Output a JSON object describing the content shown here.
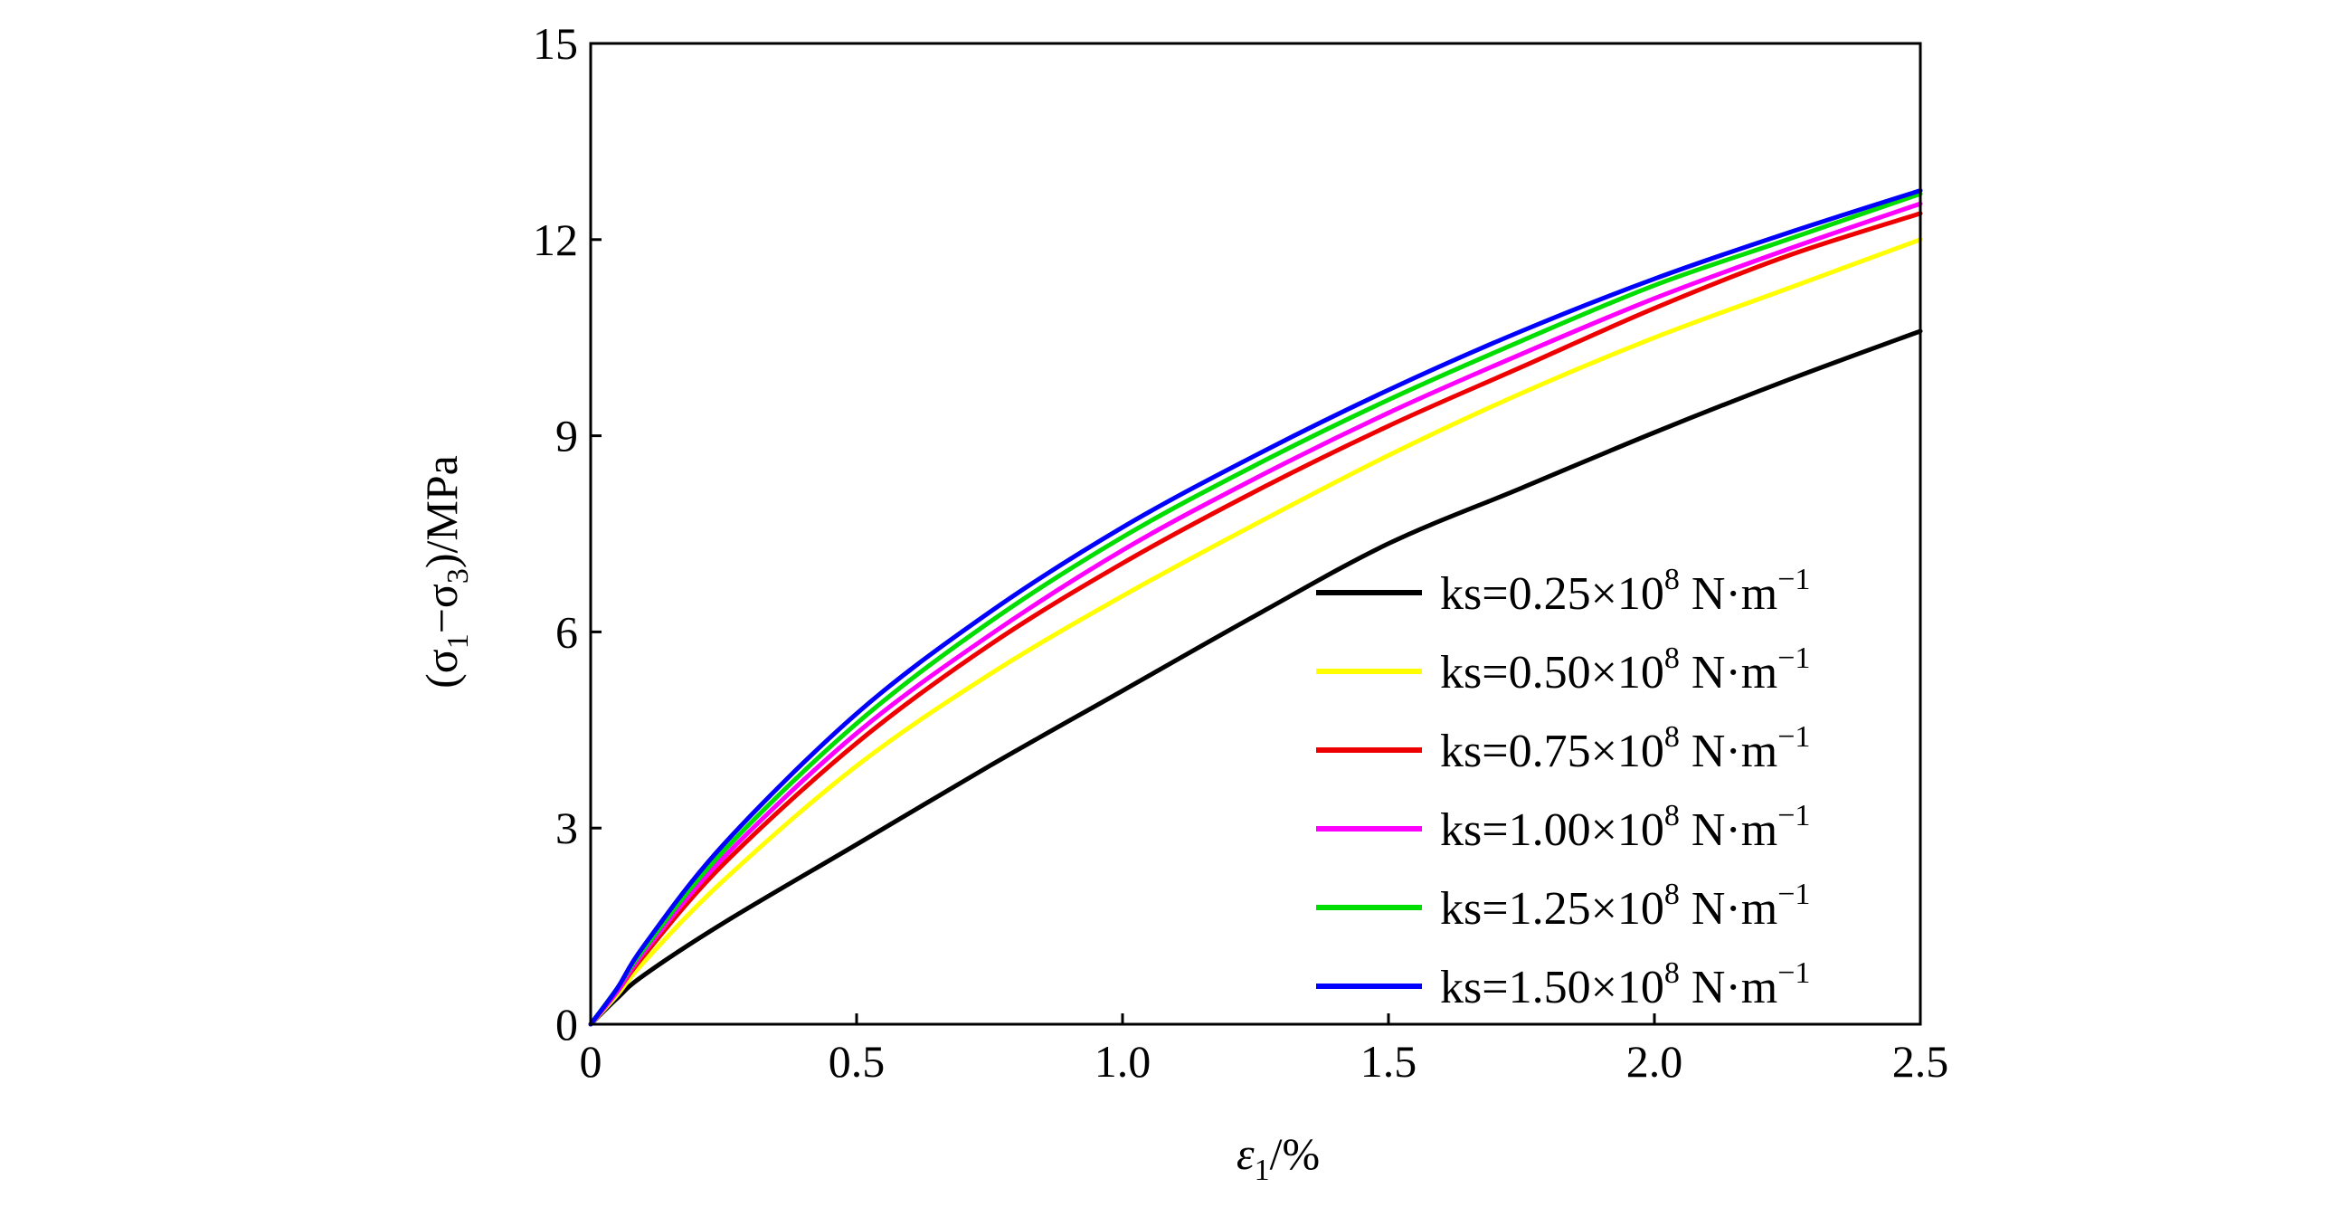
{
  "chart_data": {
    "type": "line",
    "xlabel": {
      "symbol": "ε",
      "sub": "1",
      "rest": "/%"
    },
    "ylabel": {
      "p1": "(σ",
      "s1": "1",
      "p2": "−σ",
      "s2": "3",
      "p3": ")/MPa"
    },
    "xlim": [
      0,
      2.5
    ],
    "ylim": [
      0,
      15
    ],
    "xticks": [
      0,
      0.5,
      1.0,
      1.5,
      2.0,
      2.5
    ],
    "xtick_labels": [
      "0",
      "0.5",
      "1.0",
      "1.5",
      "2.0",
      "2.5"
    ],
    "yticks": [
      0,
      3,
      6,
      9,
      12,
      15
    ],
    "ytick_labels": [
      "0",
      "3",
      "6",
      "9",
      "12",
      "15"
    ],
    "grid": false,
    "legend_position": "lower-right",
    "x": [
      0,
      0.05,
      0.1,
      0.25,
      0.5,
      0.75,
      1.0,
      1.25,
      1.5,
      1.75,
      2.0,
      2.25,
      2.5
    ],
    "series": [
      {
        "name": "ks=0.25×10⁸ N·m⁻¹",
        "label": {
          "base": "ks=0.25×10",
          "exp": "8",
          "unit": " N·m",
          "unit_exp": "−1"
        },
        "color": "#000000",
        "values": [
          0,
          0.4,
          0.75,
          1.55,
          2.75,
          3.95,
          5.1,
          6.25,
          7.35,
          8.2,
          9.05,
          9.85,
          10.6
        ]
      },
      {
        "name": "ks=0.50×10⁸ N·m⁻¹",
        "label": {
          "base": "ks=0.50×10",
          "exp": "8",
          "unit": " N·m",
          "unit_exp": "−1"
        },
        "color": "#ffff00",
        "values": [
          0,
          0.45,
          0.95,
          2.2,
          3.95,
          5.35,
          6.55,
          7.65,
          8.7,
          9.65,
          10.5,
          11.25,
          12.0
        ]
      },
      {
        "name": "ks=0.75×10⁸ N·m⁻¹",
        "label": {
          "base": "ks=0.75×10",
          "exp": "8",
          "unit": " N·m",
          "unit_exp": "−1"
        },
        "color": "#ee0000",
        "values": [
          0,
          0.5,
          1.05,
          2.45,
          4.3,
          5.8,
          7.05,
          8.15,
          9.15,
          10.05,
          10.95,
          11.75,
          12.4
        ]
      },
      {
        "name": "ks=1.00×10⁸ N·m⁻¹",
        "label": {
          "base": "ks=1.00×10",
          "exp": "8",
          "unit": " N·m",
          "unit_exp": "−1"
        },
        "color": "#ff00ff",
        "values": [
          0,
          0.5,
          1.1,
          2.55,
          4.45,
          5.95,
          7.25,
          8.35,
          9.35,
          10.25,
          11.1,
          11.85,
          12.55
        ]
      },
      {
        "name": "ks=1.25×10⁸ N·m⁻¹",
        "label": {
          "base": "ks=1.25×10",
          "exp": "8",
          "unit": " N·m",
          "unit_exp": "−1"
        },
        "color": "#00dd00",
        "values": [
          0,
          0.55,
          1.15,
          2.65,
          4.6,
          6.15,
          7.45,
          8.55,
          9.55,
          10.45,
          11.3,
          12.0,
          12.7
        ]
      },
      {
        "name": "ks=1.50×10⁸ N·m⁻¹",
        "label": {
          "base": "ks=1.50×10",
          "exp": "8",
          "unit": " N·m",
          "unit_exp": "−1"
        },
        "color": "#0000ff",
        "values": [
          0,
          0.55,
          1.2,
          2.75,
          4.75,
          6.3,
          7.6,
          8.7,
          9.7,
          10.6,
          11.4,
          12.1,
          12.75
        ]
      }
    ]
  }
}
